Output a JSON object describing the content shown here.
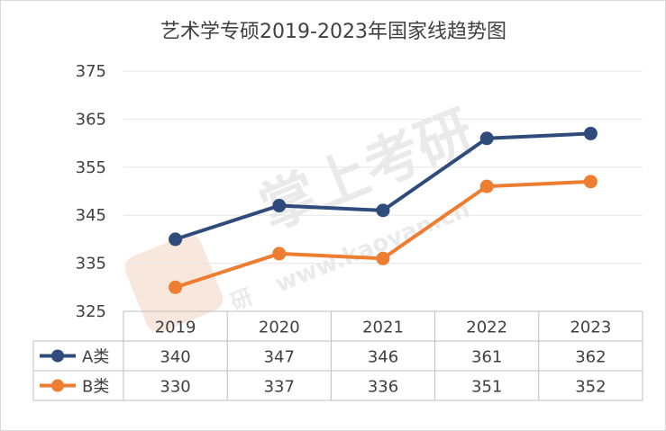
{
  "chart_data": {
    "type": "line",
    "title": "艺术学专硕2019-2023年国家线趋势图",
    "categories": [
      "2019",
      "2020",
      "2021",
      "2022",
      "2023"
    ],
    "series": [
      {
        "name": "A类",
        "values": [
          340,
          347,
          346,
          361,
          362
        ],
        "color": "#2f4b7c"
      },
      {
        "name": "B类",
        "values": [
          330,
          337,
          336,
          351,
          352
        ],
        "color": "#ed7d31"
      }
    ],
    "y_ticks": [
      "325",
      "335",
      "345",
      "355",
      "365",
      "375"
    ],
    "ylim": [
      325,
      375
    ],
    "grid": true,
    "legend": "data-table"
  },
  "watermark": {
    "brand": "掌上考研",
    "url": "www.kaoyan.cn",
    "logo_char": "研",
    "color": "#f0c9b4"
  }
}
